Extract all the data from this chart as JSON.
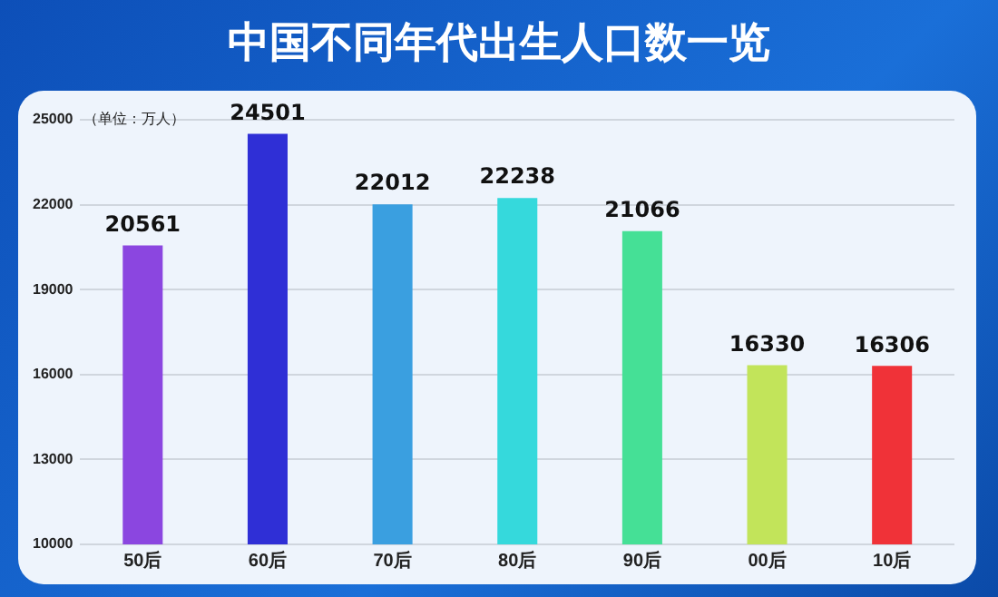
{
  "chart_data": {
    "type": "bar",
    "title": "中国不同年代出生人口数一览",
    "ylabel": "（单位：万人）",
    "categories": [
      "50后",
      "60后",
      "70后",
      "80后",
      "90后",
      "00后",
      "10后"
    ],
    "values": [
      20561,
      24501,
      22012,
      22238,
      21066,
      16330,
      16306
    ],
    "colors": [
      "#8b46e0",
      "#2f2fd6",
      "#3a9fe0",
      "#35d9dc",
      "#45e096",
      "#c2e45a",
      "#f03238"
    ],
    "ylim": [
      10000,
      25000
    ],
    "yticks": [
      10000,
      13000,
      16000,
      19000,
      22000,
      25000
    ],
    "grid": "y",
    "legend": false,
    "data_labels": true
  }
}
